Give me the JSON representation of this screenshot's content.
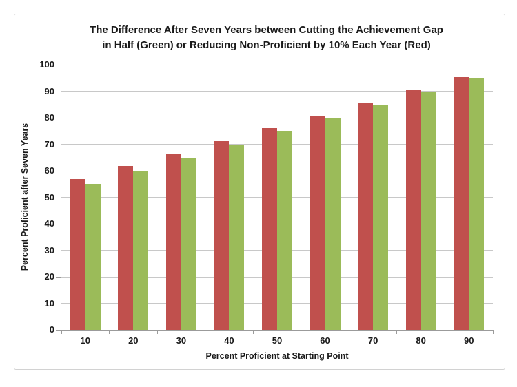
{
  "chart_data": {
    "type": "bar",
    "title": "The Difference After Seven Years between Cutting the Achievement Gap in Half (Green) or Reducing Non-Proficient by 10% Each Year (Red)",
    "title_lines": [
      "The Difference After Seven Years between Cutting the Achievement Gap",
      "in Half (Green) or Reducing Non-Proficient by 10% Each Year (Red)"
    ],
    "categories": [
      "10",
      "20",
      "30",
      "40",
      "50",
      "60",
      "70",
      "80",
      "90"
    ],
    "series": [
      {
        "name": "Reducing Non-Proficient by 10% Each Year",
        "color": "#C0504D",
        "values": [
          57.0,
          61.7,
          66.5,
          71.3,
          76.1,
          80.9,
          85.7,
          90.4,
          95.2
        ]
      },
      {
        "name": "Cutting the Achievement Gap in Half",
        "color": "#9BBB59",
        "values": [
          55,
          60,
          65,
          70,
          75,
          80,
          85,
          90,
          95
        ]
      }
    ],
    "xlabel": "Percent Proficient at Starting Point",
    "ylabel": "Percent Proficient after Seven Years",
    "ylim": [
      0,
      100
    ],
    "ytick_step": 10,
    "grid": true,
    "legend_position": "none"
  },
  "colors": {
    "red": "#C0504D",
    "green": "#9BBB59",
    "grid": "#c8c8c8",
    "axis": "#9b9b9b",
    "chart-border": "#d2d2d2",
    "text": "#1a1a1a"
  }
}
